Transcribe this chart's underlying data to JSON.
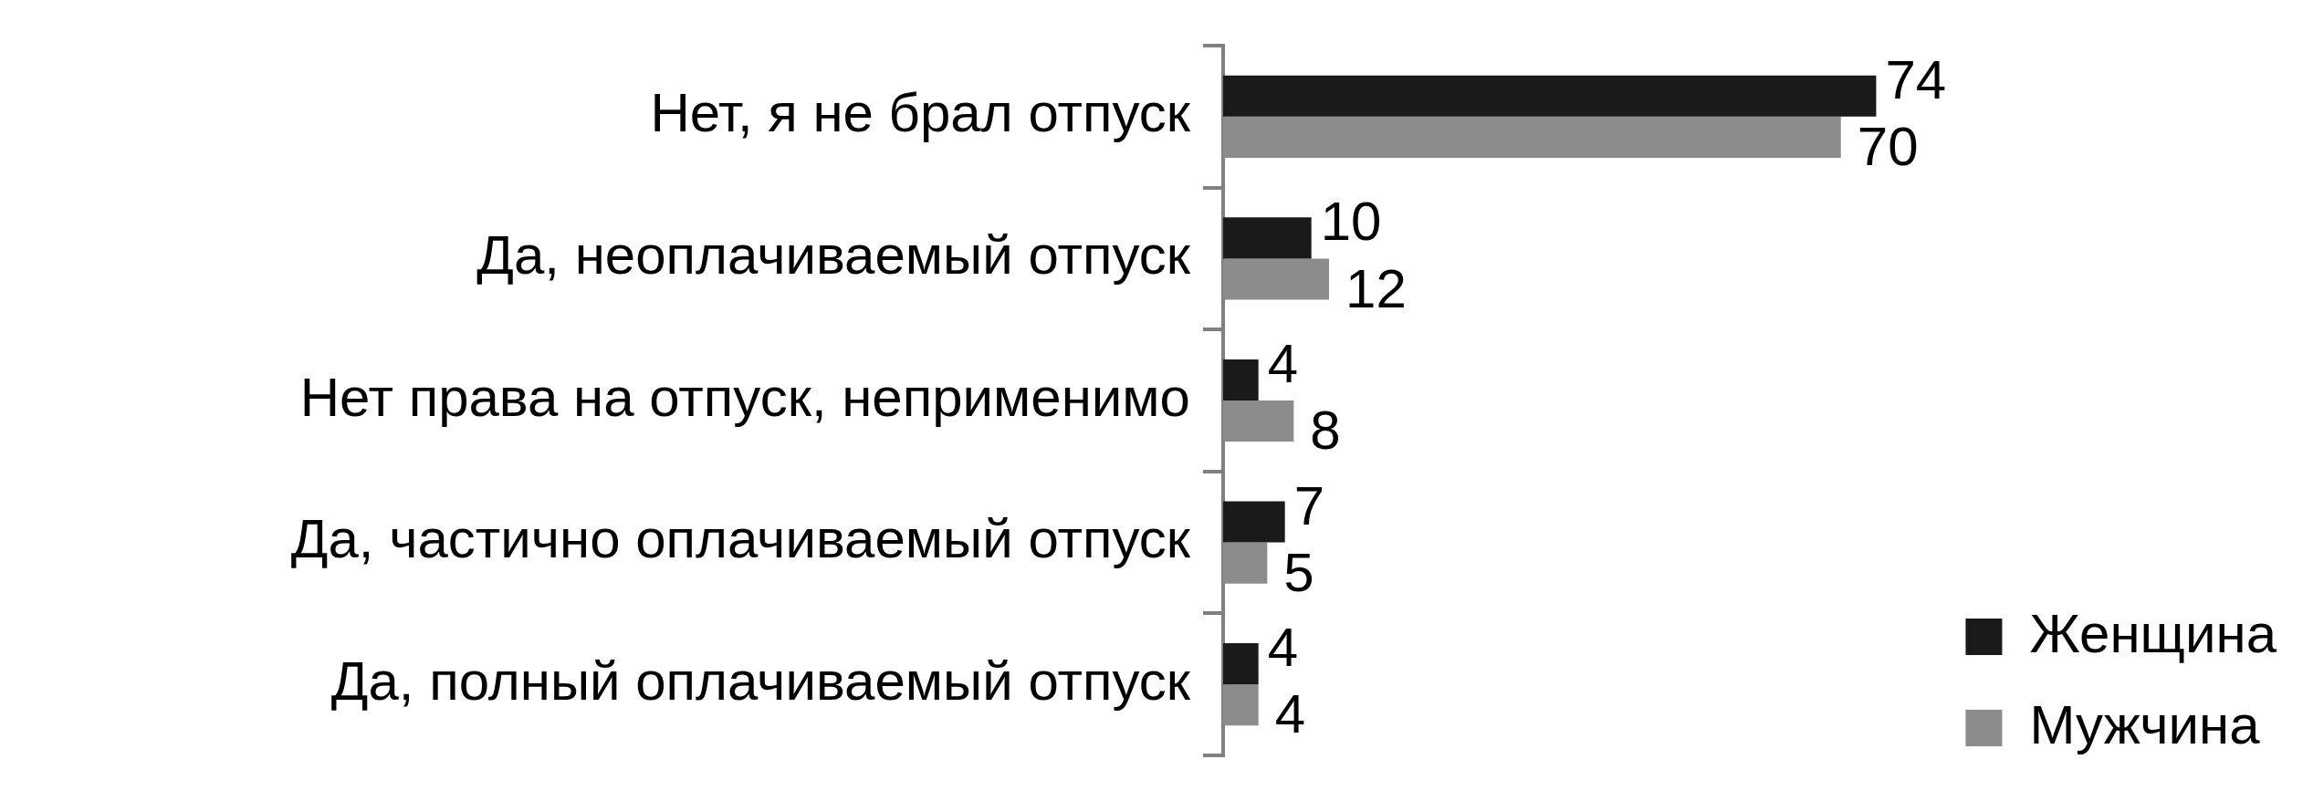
{
  "chart_data": {
    "type": "bar",
    "orientation": "horizontal",
    "categories": [
      "Нет, я не брал отпуск",
      "Да, неоплачиваемый отпуск",
      "Нет права на отпуск, неприменимо",
      "Да, частично оплачиваемый отпуск",
      "Да, полный оплачиваемый отпуск"
    ],
    "series": [
      {
        "name": "Женщина",
        "color": "#1a1a1a",
        "values": [
          74,
          10,
          4,
          7,
          4
        ]
      },
      {
        "name": "Мужчина",
        "color": "#8c8c8c",
        "values": [
          70,
          12,
          8,
          5,
          4
        ]
      }
    ],
    "data_labels": true,
    "legend": "bottom right"
  }
}
